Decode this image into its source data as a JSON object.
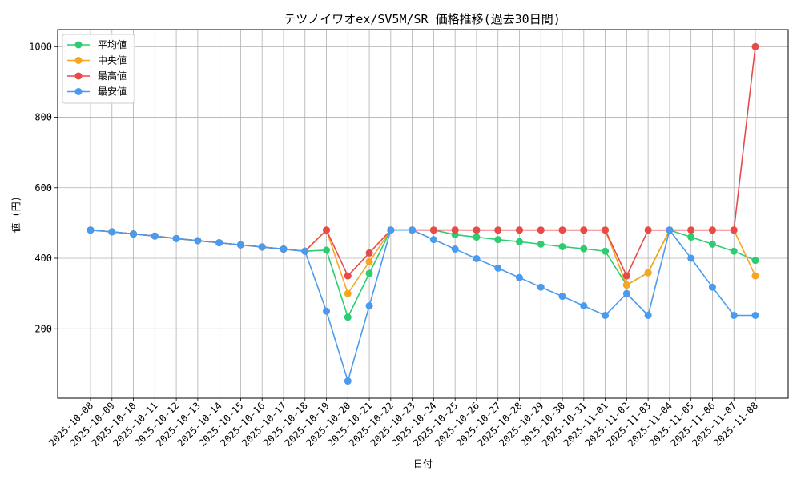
{
  "chart_data": {
    "type": "line",
    "title": "テツノイワオex/SV5M/SR 価格推移(過去30日間)",
    "xlabel": "日付",
    "ylabel": "値 (円)",
    "ylim": [
      0,
      1050
    ],
    "yticks": [
      200,
      400,
      600,
      800,
      1000
    ],
    "grid": true,
    "legend_position": "top-left",
    "categories": [
      "2025-10-08",
      "2025-10-09",
      "2025-10-10",
      "2025-10-11",
      "2025-10-12",
      "2025-10-13",
      "2025-10-14",
      "2025-10-15",
      "2025-10-16",
      "2025-10-17",
      "2025-10-18",
      "2025-10-19",
      "2025-10-20",
      "2025-10-21",
      "2025-10-22",
      "2025-10-23",
      "2025-10-24",
      "2025-10-25",
      "2025-10-26",
      "2025-10-27",
      "2025-10-28",
      "2025-10-29",
      "2025-10-30",
      "2025-10-31",
      "2025-11-01",
      "2025-11-02",
      "2025-11-03",
      "2025-11-04",
      "2025-11-05",
      "2025-11-06",
      "2025-11-07",
      "2025-11-08"
    ],
    "series": [
      {
        "name": "平均値",
        "color": "#2ecc71",
        "values": [
          480,
          475,
          469,
          463,
          456,
          450,
          444,
          438,
          432,
          426,
          420,
          423,
          233,
          357,
          480,
          480,
          480,
          467,
          460,
          453,
          447,
          440,
          433,
          427,
          420,
          324,
          359,
          480,
          460,
          440,
          420,
          394
        ]
      },
      {
        "name": "中央値",
        "color": "#f5a623",
        "values": [
          480,
          475,
          469,
          463,
          456,
          450,
          444,
          438,
          432,
          426,
          420,
          480,
          300,
          390,
          480,
          480,
          480,
          480,
          480,
          480,
          480,
          480,
          480,
          480,
          480,
          324,
          359,
          480,
          480,
          480,
          480,
          350
        ]
      },
      {
        "name": "最高値",
        "color": "#e84a4a",
        "values": [
          480,
          475,
          469,
          463,
          456,
          450,
          444,
          438,
          432,
          426,
          420,
          480,
          350,
          415,
          480,
          480,
          480,
          480,
          480,
          480,
          480,
          480,
          480,
          480,
          480,
          350,
          480,
          480,
          480,
          480,
          480,
          1000
        ]
      },
      {
        "name": "最安値",
        "color": "#4a9af0",
        "values": [
          480,
          475,
          469,
          463,
          456,
          450,
          444,
          438,
          432,
          426,
          420,
          250,
          52,
          265,
          480,
          480,
          453,
          426,
          399,
          372,
          345,
          318,
          292,
          265,
          238,
          300,
          238,
          480,
          400,
          318,
          238,
          238
        ]
      }
    ]
  }
}
